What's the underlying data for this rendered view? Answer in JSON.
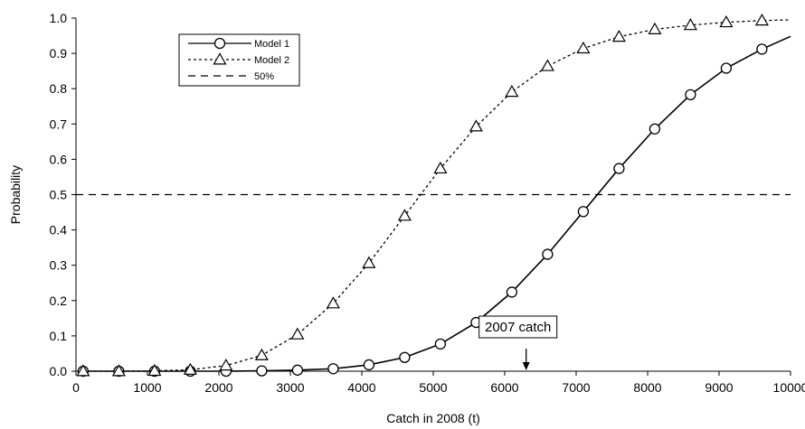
{
  "chart_data": {
    "type": "line",
    "xlabel": "Catch in 2008 (t)",
    "ylabel": "Probability",
    "xlim": [
      0,
      10000
    ],
    "ylim": [
      0,
      1.0
    ],
    "xticks": [
      0,
      1000,
      2000,
      3000,
      4000,
      5000,
      6000,
      7000,
      8000,
      9000,
      10000
    ],
    "xtick_labels": [
      "0",
      "1000",
      "2000",
      "3000",
      "4000",
      "5000",
      "6000",
      "7000",
      "8000",
      "9000",
      "10000"
    ],
    "yticks": [
      0,
      0.1,
      0.2,
      0.3,
      0.4,
      0.5,
      0.6,
      0.7,
      0.8,
      0.9,
      1.0
    ],
    "ytick_labels": [
      "0.0",
      "0.1",
      "0.2",
      "0.3",
      "0.4",
      "0.5",
      "0.6",
      "0.7",
      "0.8",
      "0.9",
      "1.0"
    ],
    "grid": false,
    "legend_position": "top-left",
    "series": [
      {
        "name": "Model 1",
        "style": "solid",
        "marker": "circle",
        "color": "#000000",
        "x": [
          100,
          600,
          1100,
          1600,
          2100,
          2600,
          3100,
          3600,
          4100,
          4600,
          5100,
          5600,
          6100,
          6600,
          7100,
          7600,
          8100,
          8600,
          9100,
          9600
        ],
        "y": [
          0.0,
          0.0,
          0.0,
          0.0,
          0.0,
          0.001,
          0.003,
          0.007,
          0.018,
          0.039,
          0.077,
          0.138,
          0.224,
          0.331,
          0.452,
          0.574,
          0.686,
          0.783,
          0.858,
          0.912
        ],
        "line_end": [
          10000,
          0.948
        ]
      },
      {
        "name": "Model 2",
        "style": "dotted",
        "marker": "triangle",
        "color": "#000000",
        "x": [
          100,
          600,
          1100,
          1600,
          2100,
          2600,
          3100,
          3600,
          4100,
          4600,
          5100,
          5600,
          6100,
          6600,
          7100,
          7600,
          8100,
          8600,
          9100,
          9600
        ],
        "y": [
          0.0,
          0.0,
          0.001,
          0.004,
          0.016,
          0.045,
          0.104,
          0.192,
          0.306,
          0.44,
          0.574,
          0.693,
          0.791,
          0.864,
          0.914,
          0.947,
          0.968,
          0.98,
          0.988,
          0.993
        ],
        "line_end": [
          10000,
          0.995
        ]
      },
      {
        "name": "50%",
        "style": "dashed",
        "marker": "none",
        "color": "#000000",
        "x": [
          0,
          10000
        ],
        "y": [
          0.5,
          0.5
        ]
      }
    ],
    "annotations": [
      {
        "text": "2007 catch",
        "x": 6300,
        "y": 0.0,
        "type": "arrow"
      }
    ]
  }
}
